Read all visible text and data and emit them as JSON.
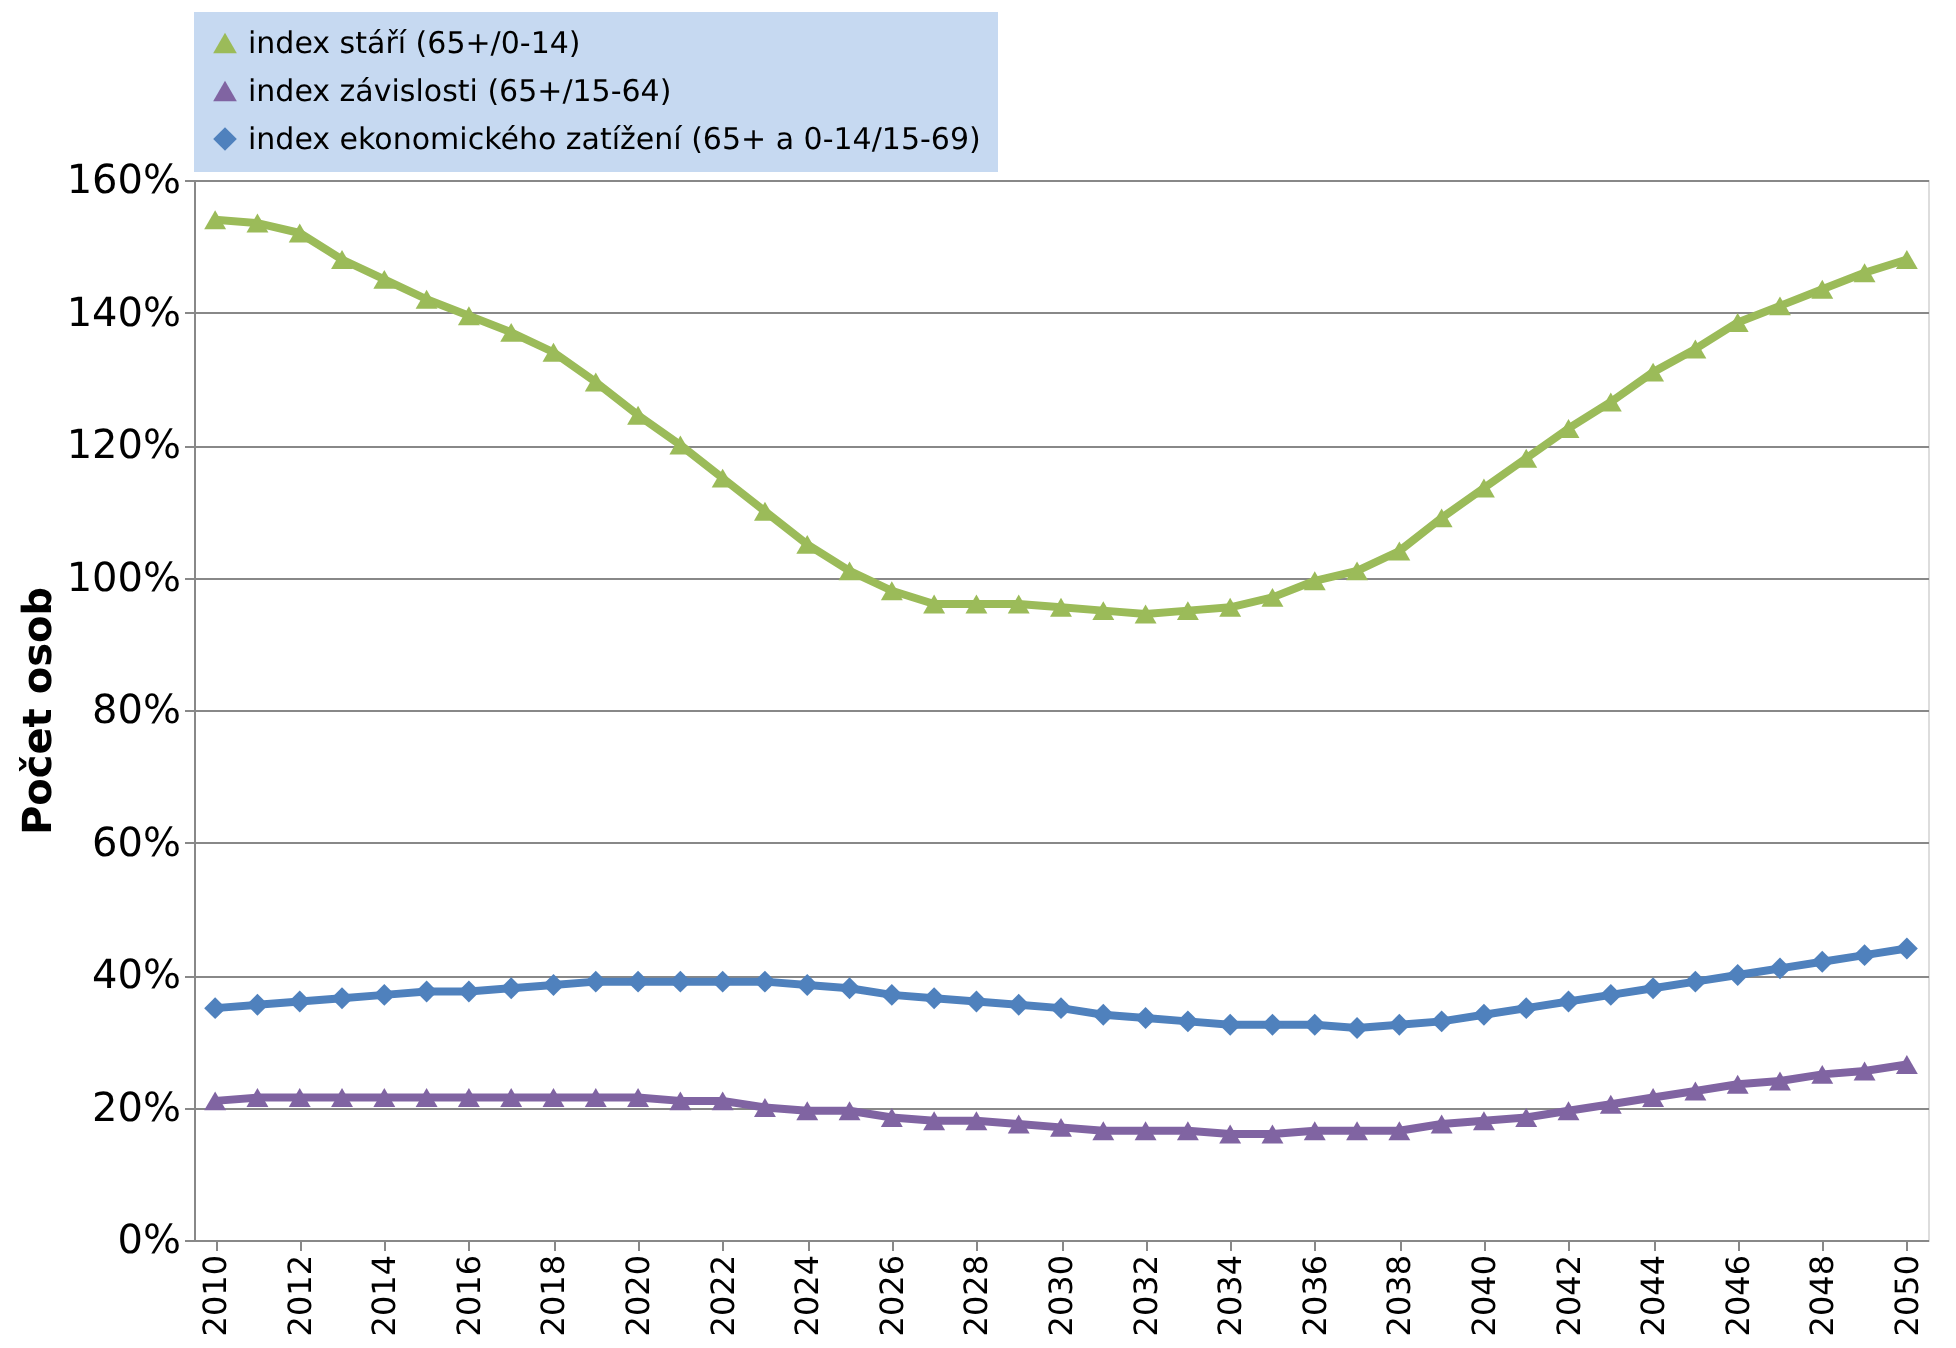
{
  "chart_data": {
    "type": "line",
    "ylabel": "Počet osob",
    "x": [
      2010,
      2011,
      2012,
      2013,
      2014,
      2015,
      2016,
      2017,
      2018,
      2019,
      2020,
      2021,
      2022,
      2023,
      2024,
      2025,
      2026,
      2027,
      2028,
      2029,
      2030,
      2031,
      2032,
      2033,
      2034,
      2035,
      2036,
      2037,
      2038,
      2039,
      2040,
      2041,
      2042,
      2043,
      2044,
      2045,
      2046,
      2047,
      2048,
      2049,
      2050
    ],
    "series": [
      {
        "name": "index stáří (65+/0-14)",
        "color": "#9bbb59",
        "marker": "triangle",
        "values": [
          154,
          153.5,
          152,
          148,
          145,
          142,
          139.5,
          137,
          134,
          129.5,
          124.5,
          120,
          115,
          110,
          105,
          101,
          98,
          96,
          96,
          96,
          95.5,
          95,
          94.5,
          95,
          95.5,
          97,
          99.5,
          101,
          104,
          109,
          113.5,
          118,
          122.5,
          126.5,
          131,
          134.5,
          138.5,
          141,
          143.5,
          146,
          148
        ]
      },
      {
        "name": "index závislosti (65+/15-64)",
        "color": "#8064a2",
        "marker": "triangle",
        "values": [
          21,
          21.5,
          21.5,
          21.5,
          21.5,
          21.5,
          21.5,
          21.5,
          21.5,
          21.5,
          21.5,
          21,
          21,
          20,
          19.5,
          19.5,
          18.5,
          18,
          18,
          17.5,
          17,
          16.5,
          16.5,
          16.5,
          16,
          16,
          16.5,
          16.5,
          16.5,
          17.5,
          18,
          18.5,
          19.5,
          20.5,
          21.5,
          22.5,
          23.5,
          24,
          25,
          25.5,
          26.5
        ]
      },
      {
        "name": "index ekonomického zatížení (65+ a 0-14/15-69)",
        "color": "#4f81bd",
        "marker": "diamond",
        "values": [
          35,
          35.5,
          36,
          36.5,
          37,
          37.5,
          37.5,
          38,
          38.5,
          39,
          39,
          39,
          39,
          39,
          38.5,
          38,
          37,
          36.5,
          36,
          35.5,
          35,
          34,
          33.5,
          33,
          32.5,
          32.5,
          32.5,
          32,
          32.5,
          33,
          34,
          35,
          36,
          37,
          38,
          39,
          40,
          41,
          42,
          43,
          44
        ]
      }
    ],
    "xlim": [
      2009.5,
      2050.5
    ],
    "xticks": [
      2010,
      2012,
      2014,
      2016,
      2018,
      2020,
      2022,
      2024,
      2026,
      2028,
      2030,
      2032,
      2034,
      2036,
      2038,
      2040,
      2042,
      2044,
      2046,
      2048,
      2050
    ],
    "ylim": [
      0,
      160
    ],
    "yticks": [
      {
        "value": 0,
        "label": "0%"
      },
      {
        "value": 20,
        "label": "20%"
      },
      {
        "value": 40,
        "label": "40%"
      },
      {
        "value": 60,
        "label": "60%"
      },
      {
        "value": 80,
        "label": "80%"
      },
      {
        "value": 100,
        "label": "100%"
      },
      {
        "value": 120,
        "label": "120%"
      },
      {
        "value": 140,
        "label": "140%"
      },
      {
        "value": 160,
        "label": "160%"
      }
    ],
    "grid": "y",
    "legend": "top",
    "line_style": "solid"
  }
}
